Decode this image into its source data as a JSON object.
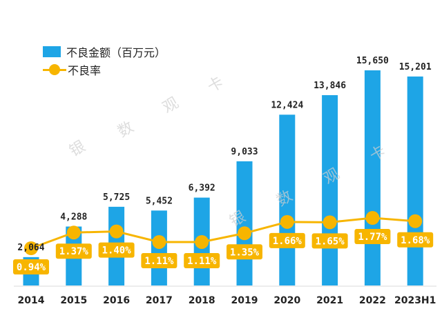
{
  "chart_data": {
    "type": "bar",
    "categories": [
      "2014",
      "2015",
      "2016",
      "2017",
      "2018",
      "2019",
      "2020",
      "2021",
      "2022",
      "2023H1"
    ],
    "series": [
      {
        "name": "不良金额（百万元）",
        "type": "bar",
        "values": [
          2064,
          4288,
          5725,
          5452,
          6392,
          9033,
          12424,
          13846,
          15650,
          15201
        ],
        "labels": [
          "2,064",
          "4,288",
          "5,725",
          "5,452",
          "6,392",
          "9,033",
          "12,424",
          "13,846",
          "15,650",
          "15,201"
        ]
      },
      {
        "name": "不良率",
        "type": "line",
        "values": [
          0.94,
          1.37,
          1.4,
          1.11,
          1.11,
          1.35,
          1.66,
          1.65,
          1.77,
          1.68
        ],
        "labels": [
          "0.94%",
          "1.37%",
          "1.40%",
          "1.11%",
          "1.11%",
          "1.35%",
          "1.66%",
          "1.65%",
          "1.77%",
          "1.68%"
        ]
      }
    ],
    "legend_position": "top-left",
    "grid": false,
    "colors": {
      "bar": "#1ea5e6",
      "line": "#f7b500",
      "label_box": "#f7b500",
      "label_text": "#ffffff",
      "axis_text": "#222222"
    }
  },
  "watermark": {
    "chars": [
      "银",
      "数",
      "观",
      "卡"
    ]
  }
}
